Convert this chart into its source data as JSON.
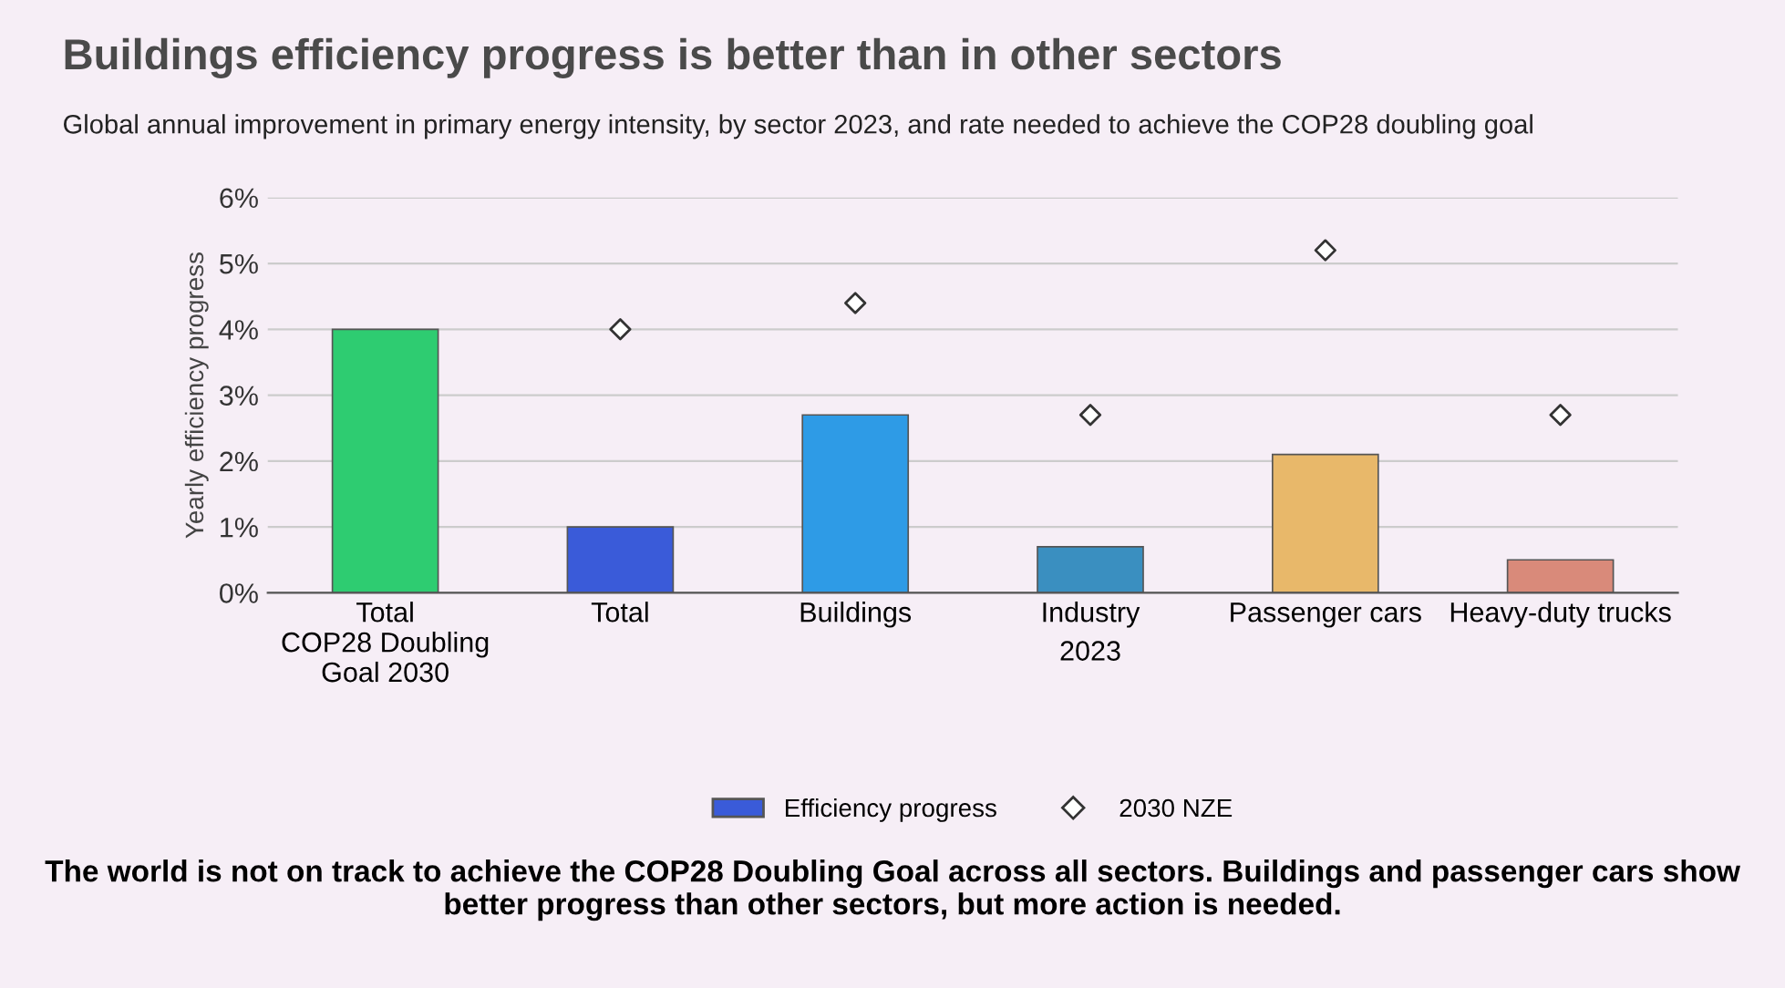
{
  "chart_data": {
    "type": "bar",
    "title": "Buildings efficiency progress is better than in other sectors",
    "subtitle": "Global annual improvement in primary energy intensity, by sector 2023, and rate needed to achieve the COP28 doubling goal",
    "ylabel": "Yearly efficiency progress",
    "xlabel": "2023",
    "categories": [
      "Total\nCOP28 Doubling\nGoal 2030",
      "Total",
      "Buildings",
      "Industry",
      "Passenger cars",
      "Heavy-duty trucks"
    ],
    "series": [
      {
        "name": "Efficiency progress",
        "color": "#3a5bd9",
        "colors": [
          "#2ecc71",
          "#3a5bd9",
          "#2e9be6",
          "#3a8fc0",
          "#e8b86a",
          "#d98a7a"
        ],
        "values": [
          4.0,
          1.0,
          2.7,
          0.7,
          2.1,
          0.5
        ]
      },
      {
        "name": "2030 NZE",
        "type": "scatter",
        "color": "#333333",
        "marker": "diamond",
        "values": [
          null,
          4.0,
          4.4,
          2.7,
          5.2,
          2.7
        ]
      }
    ],
    "ylim": [
      0,
      6
    ],
    "yticks": [
      {
        "value": 0,
        "label": "0%"
      },
      {
        "value": 1,
        "label": "1%"
      },
      {
        "value": 2,
        "label": "2%"
      },
      {
        "value": 3,
        "label": "3%"
      },
      {
        "value": 4,
        "label": "4%"
      },
      {
        "value": 5,
        "label": "5%"
      },
      {
        "value": 6,
        "label": "6%"
      }
    ],
    "grid": "y",
    "legend": "bottom",
    "annotations": [
      "The world is not on track to achieve the COP28 Doubling Goal across all sectors. Buildings and passenger cars show better progress than other sectors, but more action is needed."
    ]
  }
}
